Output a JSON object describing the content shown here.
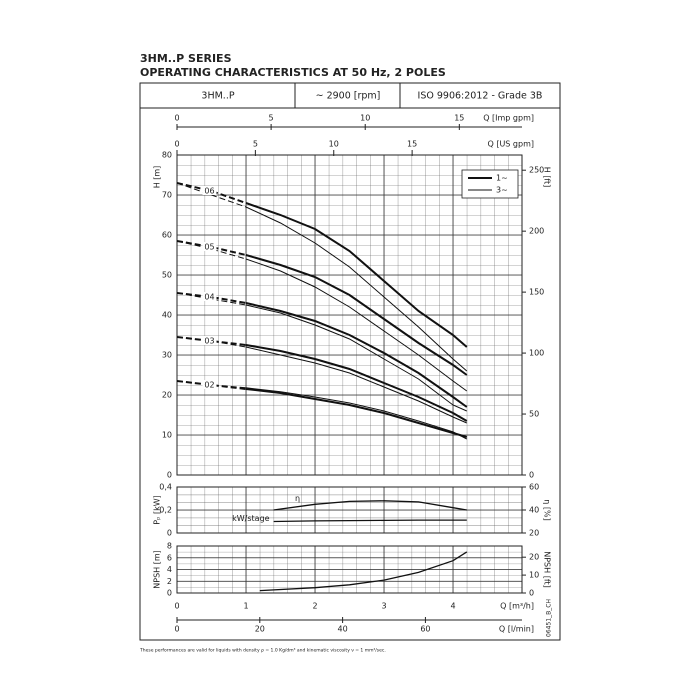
{
  "header": {
    "series_title": "3HM..P SERIES",
    "subtitle": "OPERATING CHARACTERISTICS AT 50 Hz, 2 POLES",
    "model": "3HM..P",
    "speed": "~ 2900 [rpm]",
    "standard": "ISO 9906:2012 - Grade 3B"
  },
  "footnote": "These performances are valid for liquids with density ρ = 1.0 Kg/dm³ and kinematic viscosity ν = 1 mm²/sec.",
  "code": "06451_B_CH",
  "chart_data": [
    {
      "type": "line",
      "ylabel": "H [m]",
      "y2label": "H [ft]",
      "xlim": [
        0,
        5
      ],
      "ylim": [
        0,
        80
      ],
      "yticks": [
        0,
        10,
        20,
        30,
        40,
        50,
        60,
        70,
        80
      ],
      "y2lim": [
        0,
        262.47
      ],
      "y2ticks": [
        0,
        50,
        100,
        150,
        200,
        250
      ],
      "x_top": [
        {
          "label": "Q [Imp gpm]",
          "lim": [
            0,
            18.33
          ],
          "ticks": [
            0,
            5,
            10,
            15
          ]
        },
        {
          "label": "Q [US gpm]",
          "lim": [
            0,
            22.01
          ],
          "ticks": [
            0,
            5,
            10,
            15
          ]
        }
      ],
      "grid": true,
      "dashed_below_x": 1,
      "legend_position": "upper right",
      "legend": [
        {
          "name": "1~",
          "stroke_width": 2
        },
        {
          "name": "3~",
          "stroke_width": 1
        }
      ],
      "x": [
        0,
        0.5,
        1,
        1.5,
        2,
        2.5,
        3,
        3.5,
        4,
        4.2
      ],
      "stages": [
        {
          "label": "06",
          "series": [
            {
              "values": [
                73,
                71,
                68,
                65,
                61.5,
                56,
                48.5,
                41,
                35,
                32
              ]
            },
            {
              "values": [
                73,
                70,
                67,
                63,
                58,
                52,
                44.5,
                37,
                29,
                26
              ]
            }
          ]
        },
        {
          "label": "05",
          "series": [
            {
              "values": [
                58.5,
                57,
                55,
                52.5,
                49.5,
                45,
                39,
                33,
                27.5,
                25
              ]
            },
            {
              "values": [
                58.5,
                56.5,
                54,
                51,
                47,
                42,
                36,
                30,
                23.5,
                21
              ]
            }
          ]
        },
        {
          "label": "04",
          "series": [
            {
              "values": [
                45.5,
                44.5,
                43,
                41,
                38.5,
                35,
                30.5,
                25.5,
                19.5,
                17
              ]
            },
            {
              "values": [
                45.5,
                44,
                42.5,
                40.5,
                37.5,
                34,
                29,
                24,
                17.5,
                16
              ]
            }
          ]
        },
        {
          "label": "03",
          "series": [
            {
              "values": [
                34.5,
                33.5,
                32.5,
                31,
                29,
                26.5,
                23,
                19.5,
                15.5,
                13.5
              ]
            },
            {
              "values": [
                34.5,
                33.5,
                32,
                30,
                28,
                25.5,
                22,
                18.5,
                14.5,
                13
              ]
            }
          ]
        },
        {
          "label": "02",
          "series": [
            {
              "values": [
                23.5,
                22.5,
                21.5,
                20.5,
                19,
                17.5,
                15.5,
                13,
                10.5,
                9.5
              ]
            },
            {
              "values": [
                23.5,
                22.5,
                21.8,
                20.8,
                19.5,
                18,
                16,
                13.5,
                10.8,
                9
              ]
            }
          ]
        }
      ]
    },
    {
      "type": "line",
      "ylabel": "Pₚ [kW]",
      "y2label": "η [%]",
      "xlim": [
        0,
        5
      ],
      "ylim": [
        0,
        0.4
      ],
      "yticks": [
        0,
        {
          "value": 0.2,
          "label": "0,2"
        },
        {
          "value": 0.4,
          "label": "0,4"
        }
      ],
      "y2lim": [
        20,
        60
      ],
      "y2ticks": [
        20,
        40,
        60
      ],
      "x": [
        1.4,
        2,
        2.5,
        3,
        3.5,
        4,
        4.2
      ],
      "series": [
        {
          "name": "η",
          "axis": "y2",
          "values": [
            40,
            45,
            47.5,
            48,
            47,
            42,
            40
          ]
        },
        {
          "name": "kW/stage",
          "values": [
            0.1,
            0.105,
            0.108,
            0.11,
            0.112,
            0.112,
            0.112
          ]
        }
      ]
    },
    {
      "type": "line",
      "ylabel": "NPSH [m]",
      "y2label": "NPSH [ft]",
      "xlim": [
        0,
        5
      ],
      "ylim": [
        0,
        8
      ],
      "yticks": [
        0,
        2,
        4,
        6,
        8
      ],
      "y2lim": [
        0,
        26.25
      ],
      "y2ticks": [
        0,
        10,
        20
      ],
      "xlabel": "Q [m³/h]",
      "xticks": [
        0,
        1,
        2,
        3,
        4
      ],
      "x_bottom2": {
        "label": "Q [l/min]",
        "lim": [
          0,
          83.33
        ],
        "ticks": [
          0,
          20,
          40,
          60
        ]
      },
      "x": [
        1.2,
        2,
        2.5,
        3,
        3.5,
        4,
        4.2
      ],
      "series": [
        {
          "values": [
            0.4,
            0.9,
            1.4,
            2.2,
            3.5,
            5.5,
            7
          ]
        }
      ]
    }
  ]
}
